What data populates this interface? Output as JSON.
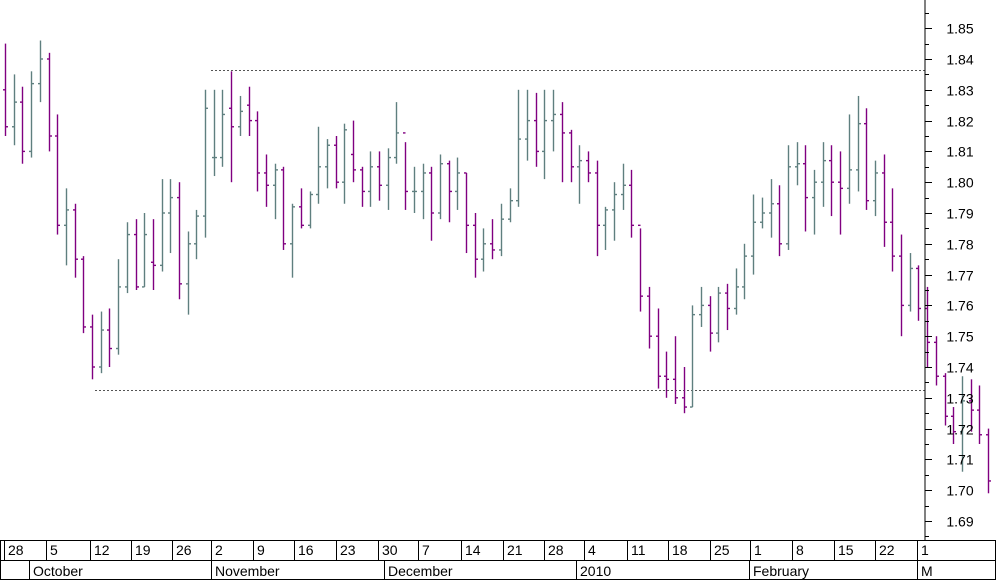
{
  "chart_data": {
    "type": "ohlc",
    "y_axis": {
      "position": "right",
      "ylim": [
        1.685,
        1.863
      ],
      "ticks": [
        "1.85",
        "1.84",
        "1.83",
        "1.82",
        "1.81",
        "1.80",
        "1.79",
        "1.78",
        "1.77",
        "1.76",
        "1.75",
        "1.74",
        "1.73",
        "1.72",
        "1.71",
        "1.70",
        "1.69"
      ]
    },
    "x_axis": {
      "day_labels": [
        "28",
        "5",
        "12",
        "19",
        "26",
        "2",
        "9",
        "16",
        "23",
        "30",
        "7",
        "14",
        "21",
        "28",
        "4",
        "11",
        "18",
        "25",
        "1",
        "8",
        "15",
        "22",
        "1"
      ],
      "month_labels": [
        "October",
        "November",
        "December",
        "2010",
        "February",
        "M"
      ]
    },
    "reference_lines": [
      1.8365,
      1.7325
    ],
    "colors": {
      "up_bar": "#5f7f7f",
      "down_bar": "#800080",
      "reference_line": "#555555"
    },
    "bars": [
      [
        1.83,
        1.845,
        1.815,
        1.818
      ],
      [
        1.818,
        1.835,
        1.812,
        1.826
      ],
      [
        1.826,
        1.831,
        1.806,
        1.81
      ],
      [
        1.81,
        1.836,
        1.808,
        1.832
      ],
      [
        1.832,
        1.846,
        1.826,
        1.84
      ],
      [
        1.84,
        1.842,
        1.81,
        1.815
      ],
      [
        1.815,
        1.822,
        1.783,
        1.786
      ],
      [
        1.786,
        1.798,
        1.773,
        1.791
      ],
      [
        1.791,
        1.793,
        1.769,
        1.775
      ],
      [
        1.775,
        1.776,
        1.751,
        1.753
      ],
      [
        1.753,
        1.757,
        1.736,
        1.74
      ],
      [
        1.74,
        1.758,
        1.738,
        1.752
      ],
      [
        1.752,
        1.759,
        1.74,
        1.746
      ],
      [
        1.746,
        1.775,
        1.744,
        1.766
      ],
      [
        1.766,
        1.787,
        1.764,
        1.783
      ],
      [
        1.783,
        1.788,
        1.765,
        1.766
      ],
      [
        1.766,
        1.79,
        1.766,
        1.783
      ],
      [
        1.774,
        1.788,
        1.765,
        1.773
      ],
      [
        1.773,
        1.801,
        1.771,
        1.79
      ],
      [
        1.79,
        1.801,
        1.777,
        1.795
      ],
      [
        1.795,
        1.8,
        1.762,
        1.767
      ],
      [
        1.767,
        1.784,
        1.757,
        1.78
      ],
      [
        1.78,
        1.791,
        1.775,
        1.789
      ],
      [
        1.789,
        1.83,
        1.782,
        1.824
      ],
      [
        1.808,
        1.83,
        1.802,
        1.808
      ],
      [
        1.808,
        1.83,
        1.805,
        1.822
      ],
      [
        1.824,
        1.836,
        1.8,
        1.818
      ],
      [
        1.818,
        1.828,
        1.815,
        1.823
      ],
      [
        1.825,
        1.831,
        1.815,
        1.82
      ],
      [
        1.82,
        1.823,
        1.797,
        1.803
      ],
      [
        1.803,
        1.809,
        1.792,
        1.799
      ],
      [
        1.799,
        1.806,
        1.788,
        1.804
      ],
      [
        1.804,
        1.805,
        1.778,
        1.78
      ],
      [
        1.78,
        1.793,
        1.769,
        1.792
      ],
      [
        1.792,
        1.798,
        1.785,
        1.786
      ],
      [
        1.786,
        1.797,
        1.785,
        1.796
      ],
      [
        1.796,
        1.818,
        1.793,
        1.805
      ],
      [
        1.805,
        1.814,
        1.798,
        1.812
      ],
      [
        1.812,
        1.815,
        1.798,
        1.8
      ],
      [
        1.8,
        1.819,
        1.793,
        1.817
      ],
      [
        1.809,
        1.82,
        1.8,
        1.804
      ],
      [
        1.804,
        1.805,
        1.792,
        1.797
      ],
      [
        1.797,
        1.81,
        1.792,
        1.805
      ],
      [
        1.805,
        1.81,
        1.794,
        1.799
      ],
      [
        1.799,
        1.811,
        1.791,
        1.808
      ],
      [
        1.808,
        1.826,
        1.806,
        1.816
      ],
      [
        1.816,
        1.813,
        1.791,
        1.797
      ],
      [
        1.797,
        1.805,
        1.79,
        1.797
      ],
      [
        1.797,
        1.806,
        1.788,
        1.803
      ],
      [
        1.803,
        1.805,
        1.781,
        1.79
      ],
      [
        1.79,
        1.809,
        1.788,
        1.806
      ],
      [
        1.806,
        1.807,
        1.787,
        1.797
      ],
      [
        1.797,
        1.808,
        1.791,
        1.803
      ],
      [
        1.803,
        1.803,
        1.777,
        1.786
      ],
      [
        1.786,
        1.79,
        1.769,
        1.775
      ],
      [
        1.775,
        1.785,
        1.771,
        1.78
      ],
      [
        1.78,
        1.788,
        1.775,
        1.778
      ],
      [
        1.778,
        1.793,
        1.776,
        1.788
      ],
      [
        1.788,
        1.798,
        1.787,
        1.794
      ],
      [
        1.794,
        1.83,
        1.792,
        1.814
      ],
      [
        1.814,
        1.83,
        1.807,
        1.82
      ],
      [
        1.82,
        1.829,
        1.805,
        1.81
      ],
      [
        1.81,
        1.83,
        1.801,
        1.82
      ],
      [
        1.82,
        1.83,
        1.81,
        1.822
      ],
      [
        1.822,
        1.826,
        1.8,
        1.816
      ],
      [
        1.816,
        1.817,
        1.8,
        1.805
      ],
      [
        1.805,
        1.812,
        1.793,
        1.807
      ],
      [
        1.807,
        1.81,
        1.8,
        1.803
      ],
      [
        1.803,
        1.807,
        1.776,
        1.786
      ],
      [
        1.786,
        1.792,
        1.778,
        1.791
      ],
      [
        1.791,
        1.8,
        1.781,
        1.796
      ],
      [
        1.796,
        1.806,
        1.791,
        1.799
      ],
      [
        1.799,
        1.804,
        1.782,
        1.786
      ],
      [
        1.786,
        1.785,
        1.758,
        1.763
      ],
      [
        1.763,
        1.766,
        1.746,
        1.75
      ],
      [
        1.75,
        1.759,
        1.733,
        1.737
      ],
      [
        1.737,
        1.745,
        1.73,
        1.736
      ],
      [
        1.736,
        1.75,
        1.728,
        1.73
      ],
      [
        1.73,
        1.74,
        1.725,
        1.727
      ],
      [
        1.727,
        1.76,
        1.727,
        1.757
      ],
      [
        1.757,
        1.766,
        1.753,
        1.76
      ],
      [
        1.76,
        1.763,
        1.745,
        1.751
      ],
      [
        1.751,
        1.766,
        1.748,
        1.764
      ],
      [
        1.764,
        1.767,
        1.752,
        1.759
      ],
      [
        1.759,
        1.772,
        1.757,
        1.766
      ],
      [
        1.766,
        1.78,
        1.762,
        1.776
      ],
      [
        1.776,
        1.796,
        1.77,
        1.787
      ],
      [
        1.787,
        1.795,
        1.785,
        1.79
      ],
      [
        1.79,
        1.801,
        1.782,
        1.793
      ],
      [
        1.793,
        1.799,
        1.776,
        1.78
      ],
      [
        1.78,
        1.812,
        1.778,
        1.805
      ],
      [
        1.805,
        1.813,
        1.799,
        1.806
      ],
      [
        1.806,
        1.812,
        1.784,
        1.795
      ],
      [
        1.795,
        1.804,
        1.783,
        1.8
      ],
      [
        1.8,
        1.813,
        1.792,
        1.807
      ],
      [
        1.807,
        1.812,
        1.789,
        1.8
      ],
      [
        1.8,
        1.81,
        1.783,
        1.798
      ],
      [
        1.798,
        1.822,
        1.793,
        1.804
      ],
      [
        1.804,
        1.828,
        1.797,
        1.819
      ],
      [
        1.819,
        1.824,
        1.791,
        1.794
      ],
      [
        1.794,
        1.807,
        1.789,
        1.803
      ],
      [
        1.803,
        1.809,
        1.779,
        1.787
      ],
      [
        1.787,
        1.798,
        1.771,
        1.776
      ],
      [
        1.776,
        1.783,
        1.75,
        1.76
      ],
      [
        1.76,
        1.777,
        1.758,
        1.772
      ],
      [
        1.772,
        1.773,
        1.755,
        1.759
      ],
      [
        1.759,
        1.766,
        1.74,
        1.748
      ],
      [
        1.748,
        1.75,
        1.734,
        1.737
      ],
      [
        1.737,
        1.738,
        1.721,
        1.724
      ],
      [
        1.724,
        1.727,
        1.715,
        1.719
      ],
      [
        1.719,
        1.737,
        1.706,
        1.729
      ],
      [
        1.729,
        1.736,
        1.719,
        1.726
      ],
      [
        1.726,
        1.734,
        1.715,
        1.718
      ],
      [
        1.718,
        1.72,
        1.699,
        1.703
      ]
    ]
  }
}
